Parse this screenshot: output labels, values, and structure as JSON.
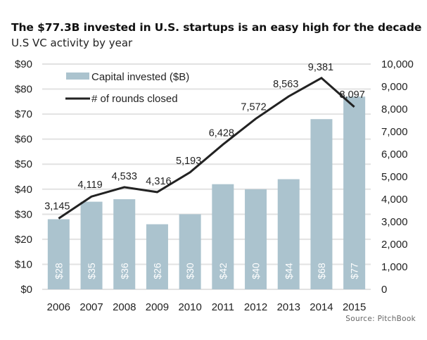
{
  "header": {
    "title": "The $77.3B invested in U.S. startups is an easy high for the decade",
    "subtitle": "U.S VC activity by year"
  },
  "source": "Source: PitchBook",
  "colors": {
    "bar": "#abc3ce",
    "line": "#222222",
    "grid": "#e2e2e2"
  },
  "chart_data": {
    "type": "bar",
    "title": "The $77.3B invested in U.S. startups is an easy high for the decade",
    "subtitle": "U.S VC activity by year",
    "categories": [
      "2006",
      "2007",
      "2008",
      "2009",
      "2010",
      "2011",
      "2012",
      "2013",
      "2014",
      "2015"
    ],
    "series": [
      {
        "name": "Capital invested ($B)",
        "type": "bar",
        "axis": "left",
        "values": [
          28,
          35,
          36,
          26,
          30,
          42,
          40,
          44,
          68,
          77
        ],
        "labels": [
          "$28",
          "$35",
          "$36",
          "$26",
          "$30",
          "$42",
          "$40",
          "$44",
          "$68",
          "$77"
        ]
      },
      {
        "name": "# of rounds closed",
        "type": "line",
        "axis": "right",
        "values": [
          3145,
          4119,
          4533,
          4316,
          5193,
          6428,
          7572,
          8563,
          9381,
          8097
        ],
        "labels": [
          "3,145",
          "4,119",
          "4,533",
          "4,316",
          "5,193",
          "6,428",
          "7,572",
          "8,563",
          "9,381",
          "8,097"
        ]
      }
    ],
    "left_axis": {
      "ylim": [
        0,
        90
      ],
      "ticks": [
        "$0",
        "$10",
        "$20",
        "$30",
        "$40",
        "$50",
        "$60",
        "$70",
        "$80",
        "$90"
      ]
    },
    "right_axis": {
      "ylim": [
        0,
        10000
      ],
      "ticks": [
        "0",
        "1,000",
        "2,000",
        "3,000",
        "4,000",
        "5,000",
        "6,000",
        "7,000",
        "8,000",
        "9,000",
        "10,000"
      ]
    },
    "xlabel": "",
    "ylabel": "",
    "grid": true,
    "legend": {
      "position": "top-left",
      "entries": [
        "Capital invested ($B)",
        "# of rounds closed"
      ]
    },
    "source": "Source: PitchBook"
  }
}
